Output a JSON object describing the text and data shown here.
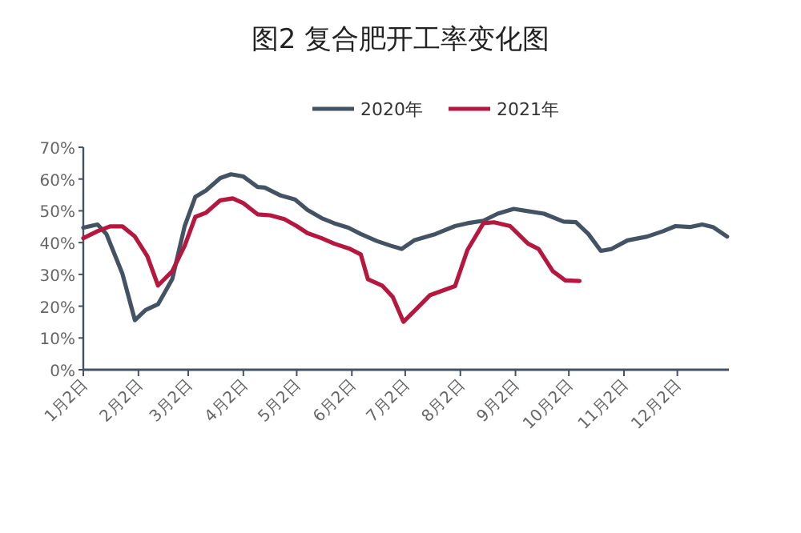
{
  "chart_data": {
    "type": "line",
    "title": "图2 复合肥开工率变化图",
    "xlim": [
      "--01-02",
      "--12-31"
    ],
    "xticks": [
      {
        "value": "--01-02",
        "label": "1月2日"
      },
      {
        "value": "--02-02",
        "label": "2月2日"
      },
      {
        "value": "--03-02",
        "label": "3月2日"
      },
      {
        "value": "--04-02",
        "label": "4月2日"
      },
      {
        "value": "--05-02",
        "label": "5月2日"
      },
      {
        "value": "--06-02",
        "label": "6月2日"
      },
      {
        "value": "--07-02",
        "label": "7月2日"
      },
      {
        "value": "--08-02",
        "label": "8月2日"
      },
      {
        "value": "--09-02",
        "label": "9月2日"
      },
      {
        "value": "--10-02",
        "label": "10月2日"
      },
      {
        "value": "--11-02",
        "label": "11月2日"
      },
      {
        "value": "--12-02",
        "label": "12月2日"
      }
    ],
    "ylim": [
      0,
      70
    ],
    "yticks": [
      {
        "value": 0,
        "label": "0%"
      },
      {
        "value": 10,
        "label": "10%"
      },
      {
        "value": 20,
        "label": "20%"
      },
      {
        "value": 30,
        "label": "30%"
      },
      {
        "value": 40,
        "label": "40%"
      },
      {
        "value": 50,
        "label": "50%"
      },
      {
        "value": 60,
        "label": "60%"
      },
      {
        "value": 70,
        "label": "70%"
      }
    ],
    "grid": false,
    "legend": "top",
    "marker": "none",
    "line_style": "solid",
    "series": [
      {
        "name": "2020年",
        "color": "#435363",
        "x": [
          "--01-02",
          "--01-10",
          "--01-15",
          "--01-24",
          "--01-31",
          "--02-06",
          "--02-13",
          "--02-21",
          "--02-28",
          "--03-06",
          "--03-12",
          "--03-20",
          "--03-26",
          "--04-02",
          "--04-10",
          "--04-14",
          "--04-23",
          "--05-01",
          "--05-08",
          "--05-16",
          "--05-23",
          "--05-31",
          "--06-07",
          "--06-16",
          "--06-24",
          "--06-30",
          "--07-07",
          "--07-19",
          "--07-30",
          "--08-06",
          "--08-15",
          "--08-23",
          "--09-01",
          "--09-09",
          "--09-18",
          "--09-29",
          "--10-06",
          "--10-13",
          "--10-20",
          "--10-26",
          "--11-04",
          "--11-15",
          "--11-24",
          "--12-01",
          "--12-09",
          "--12-16",
          "--12-22",
          "--12-30"
        ],
        "values": [
          44.7,
          45.7,
          42.7,
          30.2,
          15.6,
          18.8,
          20.6,
          28.5,
          45.2,
          54.4,
          56.4,
          60.3,
          61.5,
          60.8,
          57.5,
          57.3,
          54.8,
          53.6,
          50.3,
          47.7,
          46.1,
          44.7,
          42.7,
          40.5,
          39.0,
          38.0,
          40.7,
          42.7,
          45.2,
          46.1,
          46.9,
          49.1,
          50.6,
          49.9,
          49.1,
          46.6,
          46.4,
          42.7,
          37.4,
          38.0,
          40.7,
          41.9,
          43.6,
          45.2,
          44.9,
          45.7,
          44.9,
          41.9
        ]
      },
      {
        "name": "2021年",
        "color": "#b5173f",
        "x": [
          "--01-02",
          "--01-10",
          "--01-17",
          "--01-24",
          "--01-31",
          "--02-07",
          "--02-13",
          "--02-21",
          "--02-28",
          "--03-06",
          "--03-12",
          "--03-20",
          "--03-27",
          "--04-02",
          "--04-10",
          "--04-17",
          "--04-25",
          "--05-02",
          "--05-08",
          "--05-16",
          "--05-23",
          "--06-01",
          "--06-07",
          "--06-11",
          "--06-19",
          "--06-25",
          "--07-01",
          "--07-07",
          "--07-16",
          "--07-30",
          "--08-06",
          "--08-15",
          "--08-21",
          "--08-30",
          "--09-09",
          "--09-15",
          "--09-23",
          "--09-30",
          "--10-08"
        ],
        "values": [
          41.4,
          43.6,
          45.1,
          45.1,
          41.9,
          35.7,
          26.5,
          31.0,
          39.0,
          48.1,
          49.4,
          53.3,
          53.9,
          52.4,
          48.9,
          48.6,
          47.4,
          45.2,
          43.0,
          41.4,
          39.7,
          38.0,
          36.3,
          28.5,
          26.5,
          22.9,
          15.1,
          18.4,
          23.5,
          26.3,
          37.7,
          46.1,
          46.4,
          45.2,
          39.7,
          38.0,
          31.0,
          28.1,
          27.9
        ]
      }
    ]
  }
}
